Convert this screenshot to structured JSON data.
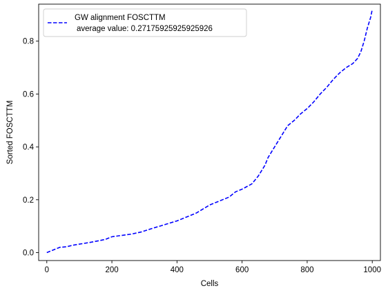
{
  "chart_data": {
    "type": "line",
    "title": "",
    "xlabel": "Cells",
    "ylabel": "Sorted FOSCTTM",
    "xlim": [
      -25,
      1025
    ],
    "ylim": [
      -0.03,
      0.94
    ],
    "xticks": [
      0,
      200,
      400,
      600,
      800,
      1000
    ],
    "yticks": [
      0.0,
      0.2,
      0.4,
      0.6,
      0.8
    ],
    "xtick_labels": [
      "0",
      "200",
      "400",
      "600",
      "800",
      "1000"
    ],
    "ytick_labels": [
      "0.0",
      "0.2",
      "0.4",
      "0.6",
      "0.8"
    ],
    "grid": false,
    "legend_position": "upper-left",
    "series": [
      {
        "name": "GW alignment FOSCTTM",
        "legend_line2": "average value: 0.27175925925925926",
        "color": "#0000ff",
        "linestyle": "dashed",
        "x": [
          0,
          20,
          40,
          60,
          80,
          100,
          130,
          160,
          180,
          200,
          230,
          260,
          290,
          320,
          360,
          400,
          430,
          460,
          480,
          500,
          530,
          560,
          580,
          600,
          630,
          650,
          670,
          680,
          700,
          720,
          740,
          760,
          780,
          800,
          820,
          840,
          860,
          880,
          900,
          920,
          940,
          955,
          965,
          975,
          985,
          995,
          1000
        ],
        "y": [
          0.0,
          0.01,
          0.02,
          0.022,
          0.028,
          0.032,
          0.038,
          0.045,
          0.05,
          0.06,
          0.065,
          0.07,
          0.078,
          0.09,
          0.105,
          0.12,
          0.135,
          0.15,
          0.165,
          0.18,
          0.195,
          0.21,
          0.23,
          0.24,
          0.26,
          0.29,
          0.33,
          0.36,
          0.4,
          0.44,
          0.48,
          0.5,
          0.525,
          0.545,
          0.57,
          0.6,
          0.625,
          0.655,
          0.68,
          0.7,
          0.715,
          0.735,
          0.76,
          0.8,
          0.85,
          0.89,
          0.92
        ]
      }
    ]
  }
}
